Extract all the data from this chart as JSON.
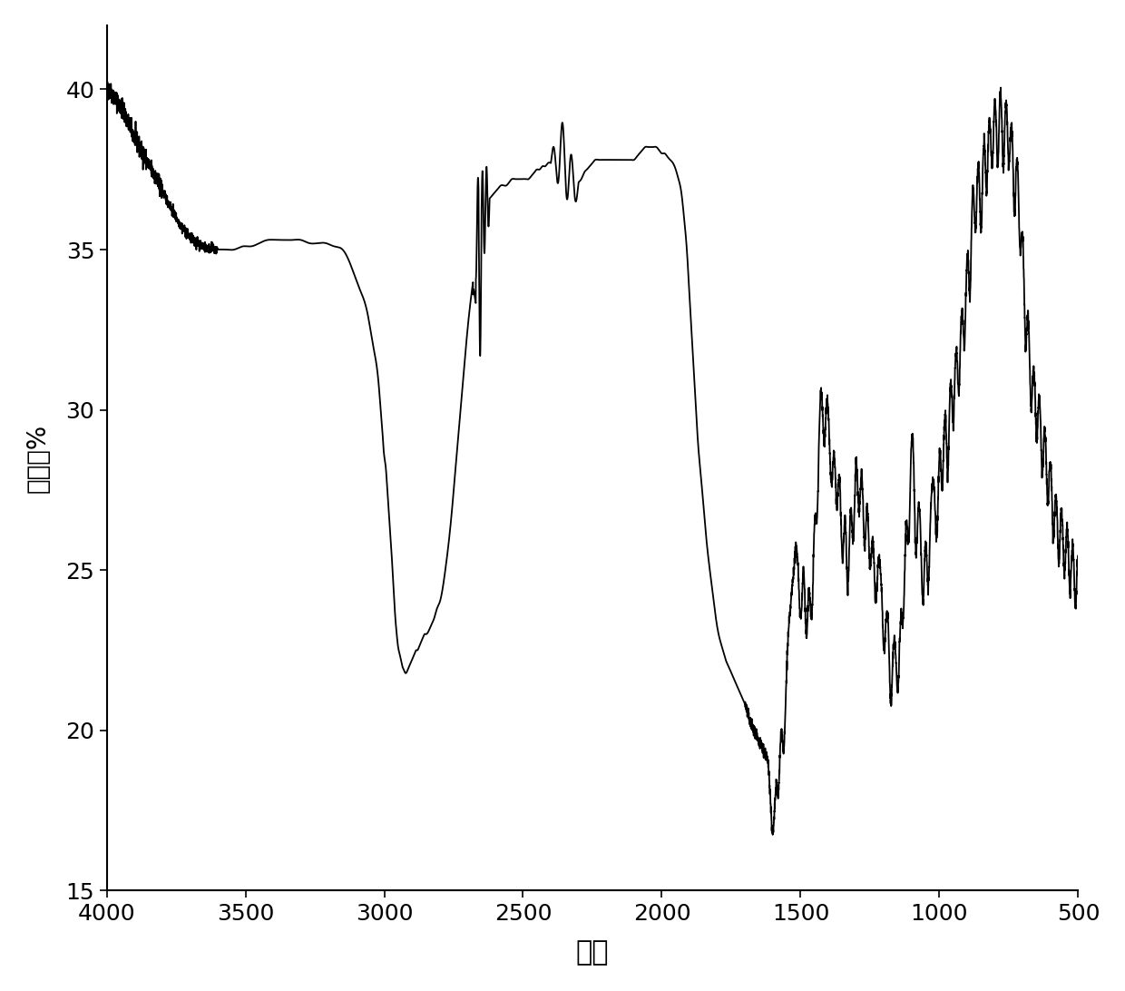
{
  "title": "",
  "xlabel": "波数",
  "ylabel": "透射率%",
  "xlim": [
    4000,
    500
  ],
  "ylim": [
    15,
    42
  ],
  "yticks": [
    15,
    20,
    25,
    30,
    35,
    40
  ],
  "xticks": [
    4000,
    3500,
    3000,
    2500,
    2000,
    1500,
    1000,
    500
  ],
  "line_color": "#000000",
  "line_width": 1.3,
  "background_color": "#ffffff",
  "xlabel_fontsize": 22,
  "ylabel_fontsize": 20,
  "tick_fontsize": 18,
  "noise_seed": 42,
  "keypoints": [
    [
      4000,
      40.0
    ],
    [
      3980,
      39.85
    ],
    [
      3960,
      39.6
    ],
    [
      3940,
      39.3
    ],
    [
      3920,
      38.9
    ],
    [
      3900,
      38.5
    ],
    [
      3870,
      38.0
    ],
    [
      3840,
      37.5
    ],
    [
      3810,
      37.0
    ],
    [
      3780,
      36.5
    ],
    [
      3750,
      36.0
    ],
    [
      3720,
      35.6
    ],
    [
      3690,
      35.3
    ],
    [
      3650,
      35.1
    ],
    [
      3600,
      35.0
    ],
    [
      3570,
      35.0
    ],
    [
      3540,
      35.0
    ],
    [
      3510,
      35.1
    ],
    [
      3480,
      35.1
    ],
    [
      3450,
      35.2
    ],
    [
      3420,
      35.3
    ],
    [
      3390,
      35.3
    ],
    [
      3360,
      35.3
    ],
    [
      3330,
      35.3
    ],
    [
      3300,
      35.3
    ],
    [
      3270,
      35.2
    ],
    [
      3240,
      35.2
    ],
    [
      3210,
      35.2
    ],
    [
      3180,
      35.1
    ],
    [
      3150,
      35.0
    ],
    [
      3120,
      34.5
    ],
    [
      3090,
      33.8
    ],
    [
      3060,
      33.0
    ],
    [
      3040,
      32.0
    ],
    [
      3020,
      30.8
    ],
    [
      3010,
      29.8
    ],
    [
      3005,
      29.5
    ],
    [
      3000,
      29.0
    ],
    [
      2985,
      27.0
    ],
    [
      2970,
      25.0
    ],
    [
      2960,
      23.5
    ],
    [
      2955,
      23.0
    ],
    [
      2950,
      22.6
    ],
    [
      2945,
      22.4
    ],
    [
      2940,
      22.2
    ],
    [
      2935,
      22.0
    ],
    [
      2930,
      21.9
    ],
    [
      2925,
      21.8
    ],
    [
      2920,
      21.8
    ],
    [
      2915,
      21.9
    ],
    [
      2910,
      22.0
    ],
    [
      2905,
      22.1
    ],
    [
      2900,
      22.2
    ],
    [
      2895,
      22.3
    ],
    [
      2890,
      22.4
    ],
    [
      2885,
      22.5
    ],
    [
      2880,
      22.5
    ],
    [
      2875,
      22.6
    ],
    [
      2870,
      22.7
    ],
    [
      2865,
      22.8
    ],
    [
      2860,
      22.9
    ],
    [
      2855,
      23.0
    ],
    [
      2850,
      23.0
    ],
    [
      2840,
      23.1
    ],
    [
      2830,
      23.3
    ],
    [
      2820,
      23.5
    ],
    [
      2810,
      23.8
    ],
    [
      2800,
      24.0
    ],
    [
      2780,
      25.0
    ],
    [
      2760,
      26.5
    ],
    [
      2740,
      28.5
    ],
    [
      2720,
      30.5
    ],
    [
      2700,
      32.5
    ],
    [
      2680,
      34.0
    ],
    [
      2660,
      35.2
    ],
    [
      2650,
      35.8
    ],
    [
      2640,
      36.2
    ],
    [
      2630,
      36.5
    ],
    [
      2620,
      36.6
    ],
    [
      2610,
      36.7
    ],
    [
      2600,
      36.8
    ],
    [
      2590,
      36.9
    ],
    [
      2580,
      37.0
    ],
    [
      2570,
      37.0
    ],
    [
      2560,
      37.0
    ],
    [
      2550,
      37.1
    ],
    [
      2540,
      37.2
    ],
    [
      2530,
      37.2
    ],
    [
      2520,
      37.2
    ],
    [
      2510,
      37.2
    ],
    [
      2500,
      37.2
    ],
    [
      2490,
      37.2
    ],
    [
      2480,
      37.2
    ],
    [
      2470,
      37.3
    ],
    [
      2460,
      37.4
    ],
    [
      2450,
      37.5
    ],
    [
      2440,
      37.5
    ],
    [
      2430,
      37.6
    ],
    [
      2420,
      37.6
    ],
    [
      2410,
      37.7
    ],
    [
      2400,
      37.7
    ],
    [
      2390,
      37.7
    ],
    [
      2380,
      37.8
    ],
    [
      2370,
      37.9
    ],
    [
      2360,
      38.0
    ],
    [
      2350,
      37.8
    ],
    [
      2340,
      37.5
    ],
    [
      2330,
      37.3
    ],
    [
      2320,
      37.0
    ],
    [
      2310,
      37.0
    ],
    [
      2300,
      37.1
    ],
    [
      2290,
      37.2
    ],
    [
      2280,
      37.4
    ],
    [
      2270,
      37.5
    ],
    [
      2260,
      37.6
    ],
    [
      2250,
      37.7
    ],
    [
      2240,
      37.8
    ],
    [
      2230,
      37.8
    ],
    [
      2220,
      37.8
    ],
    [
      2210,
      37.8
    ],
    [
      2200,
      37.8
    ],
    [
      2190,
      37.8
    ],
    [
      2180,
      37.8
    ],
    [
      2170,
      37.8
    ],
    [
      2160,
      37.8
    ],
    [
      2150,
      37.8
    ],
    [
      2140,
      37.8
    ],
    [
      2130,
      37.8
    ],
    [
      2120,
      37.8
    ],
    [
      2110,
      37.8
    ],
    [
      2100,
      37.8
    ],
    [
      2090,
      37.9
    ],
    [
      2080,
      38.0
    ],
    [
      2070,
      38.1
    ],
    [
      2060,
      38.2
    ],
    [
      2050,
      38.2
    ],
    [
      2040,
      38.2
    ],
    [
      2030,
      38.2
    ],
    [
      2020,
      38.2
    ],
    [
      2010,
      38.1
    ],
    [
      2000,
      38.0
    ],
    [
      1990,
      38.0
    ],
    [
      1980,
      37.9
    ],
    [
      1970,
      37.8
    ],
    [
      1960,
      37.7
    ],
    [
      1950,
      37.5
    ],
    [
      1940,
      37.2
    ],
    [
      1930,
      36.8
    ],
    [
      1920,
      36.0
    ],
    [
      1910,
      35.0
    ],
    [
      1900,
      33.5
    ],
    [
      1890,
      32.0
    ],
    [
      1880,
      30.5
    ],
    [
      1870,
      29.0
    ],
    [
      1860,
      28.0
    ],
    [
      1850,
      27.0
    ],
    [
      1840,
      26.0
    ],
    [
      1830,
      25.2
    ],
    [
      1820,
      24.5
    ],
    [
      1810,
      23.8
    ],
    [
      1800,
      23.2
    ],
    [
      1790,
      22.8
    ],
    [
      1780,
      22.5
    ],
    [
      1770,
      22.2
    ],
    [
      1760,
      22.0
    ],
    [
      1750,
      21.8
    ],
    [
      1740,
      21.6
    ],
    [
      1730,
      21.4
    ],
    [
      1720,
      21.2
    ],
    [
      1710,
      21.0
    ],
    [
      1700,
      20.8
    ],
    [
      1690,
      20.5
    ],
    [
      1680,
      20.2
    ],
    [
      1670,
      20.0
    ],
    [
      1660,
      19.8
    ],
    [
      1650,
      19.6
    ],
    [
      1640,
      19.5
    ],
    [
      1630,
      19.3
    ],
    [
      1620,
      19.2
    ],
    [
      1610,
      19.2
    ],
    [
      1600,
      19.3
    ],
    [
      1590,
      19.5
    ],
    [
      1580,
      20.0
    ],
    [
      1560,
      21.5
    ],
    [
      1540,
      23.5
    ],
    [
      1520,
      25.5
    ],
    [
      1510,
      26.5
    ],
    [
      1500,
      27.0
    ],
    [
      1490,
      26.5
    ],
    [
      1480,
      25.5
    ],
    [
      1470,
      25.0
    ],
    [
      1460,
      25.5
    ],
    [
      1450,
      27.0
    ],
    [
      1440,
      29.0
    ],
    [
      1430,
      30.5
    ],
    [
      1420,
      31.0
    ],
    [
      1410,
      30.8
    ],
    [
      1400,
      30.5
    ],
    [
      1390,
      30.2
    ],
    [
      1380,
      29.5
    ],
    [
      1370,
      29.0
    ],
    [
      1360,
      28.5
    ],
    [
      1350,
      27.8
    ],
    [
      1340,
      27.2
    ],
    [
      1330,
      27.0
    ],
    [
      1320,
      27.5
    ],
    [
      1310,
      28.5
    ],
    [
      1300,
      29.0
    ],
    [
      1290,
      28.8
    ],
    [
      1280,
      28.5
    ],
    [
      1270,
      28.0
    ],
    [
      1260,
      27.5
    ],
    [
      1250,
      27.0
    ],
    [
      1240,
      26.5
    ],
    [
      1230,
      26.0
    ],
    [
      1220,
      25.5
    ],
    [
      1210,
      25.0
    ],
    [
      1200,
      24.5
    ],
    [
      1190,
      24.0
    ],
    [
      1180,
      23.5
    ],
    [
      1170,
      23.2
    ],
    [
      1160,
      23.0
    ],
    [
      1150,
      23.2
    ],
    [
      1140,
      24.0
    ],
    [
      1130,
      25.5
    ],
    [
      1120,
      27.0
    ],
    [
      1110,
      28.5
    ],
    [
      1100,
      29.5
    ],
    [
      1090,
      29.0
    ],
    [
      1080,
      28.0
    ],
    [
      1070,
      27.0
    ],
    [
      1060,
      26.5
    ],
    [
      1050,
      26.5
    ],
    [
      1040,
      27.0
    ],
    [
      1030,
      27.5
    ],
    [
      1020,
      28.0
    ],
    [
      1010,
      28.5
    ],
    [
      1000,
      29.0
    ],
    [
      990,
      29.5
    ],
    [
      980,
      30.0
    ],
    [
      970,
      30.5
    ],
    [
      960,
      31.0
    ],
    [
      950,
      31.5
    ],
    [
      940,
      32.0
    ],
    [
      930,
      32.5
    ],
    [
      920,
      33.2
    ],
    [
      910,
      34.0
    ],
    [
      900,
      35.0
    ],
    [
      890,
      36.0
    ],
    [
      880,
      37.0
    ],
    [
      870,
      37.5
    ],
    [
      860,
      37.8
    ],
    [
      850,
      38.0
    ],
    [
      840,
      38.5
    ],
    [
      830,
      38.8
    ],
    [
      820,
      39.2
    ],
    [
      810,
      39.5
    ],
    [
      800,
      39.8
    ],
    [
      790,
      40.0
    ],
    [
      780,
      40.1
    ],
    [
      770,
      40.0
    ],
    [
      760,
      39.8
    ],
    [
      750,
      39.5
    ],
    [
      740,
      39.0
    ],
    [
      730,
      38.5
    ],
    [
      720,
      38.0
    ],
    [
      710,
      37.0
    ],
    [
      700,
      35.5
    ],
    [
      690,
      34.0
    ],
    [
      680,
      33.0
    ],
    [
      670,
      32.0
    ],
    [
      660,
      31.5
    ],
    [
      650,
      31.0
    ],
    [
      640,
      30.5
    ],
    [
      630,
      30.0
    ],
    [
      620,
      29.5
    ],
    [
      610,
      29.0
    ],
    [
      600,
      28.5
    ],
    [
      590,
      28.0
    ],
    [
      580,
      27.5
    ],
    [
      570,
      27.2
    ],
    [
      560,
      27.0
    ],
    [
      550,
      26.8
    ],
    [
      540,
      26.5
    ],
    [
      530,
      26.3
    ],
    [
      520,
      26.0
    ],
    [
      510,
      25.8
    ],
    [
      500,
      25.5
    ]
  ]
}
